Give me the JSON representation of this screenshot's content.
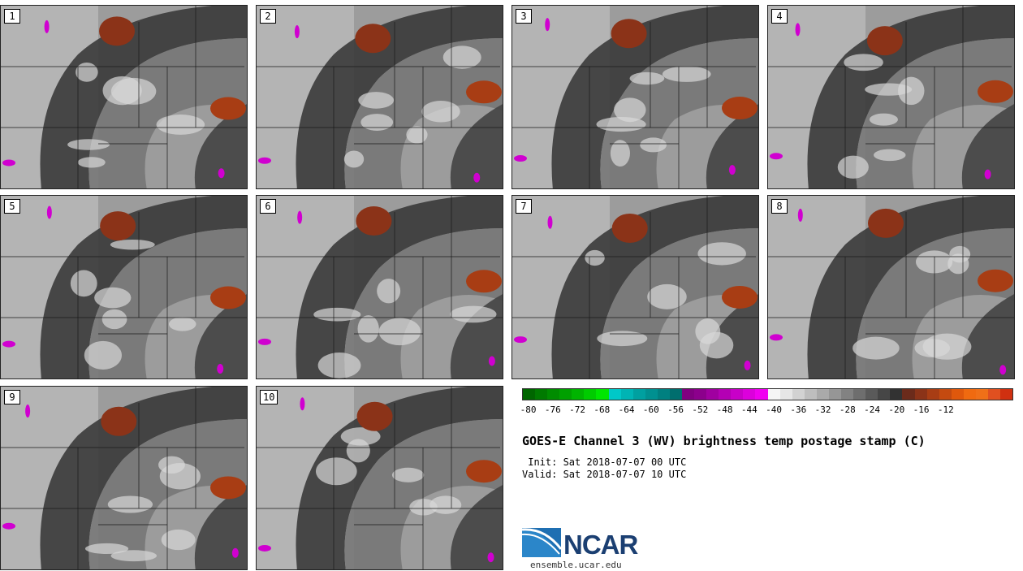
{
  "panels": [
    "1",
    "2",
    "3",
    "4",
    "5",
    "6",
    "7",
    "8",
    "9",
    "10"
  ],
  "colorbar": {
    "ticks": [
      "-80",
      "-76",
      "-72",
      "-68",
      "-64",
      "-60",
      "-56",
      "-52",
      "-48",
      "-44",
      "-40",
      "-36",
      "-32",
      "-28",
      "-24",
      "-20",
      "-16",
      "-12"
    ],
    "colors": [
      "#006600",
      "#007a00",
      "#008c00",
      "#00a000",
      "#00b400",
      "#00cc00",
      "#00e600",
      "#00c8c8",
      "#00b4b4",
      "#00a0a0",
      "#009090",
      "#008080",
      "#006e6e",
      "#800080",
      "#8c008c",
      "#a000a0",
      "#b400b4",
      "#c800c8",
      "#dc00dc",
      "#f000f0",
      "#f5f5f5",
      "#e6e6e6",
      "#d2d2d2",
      "#bebebe",
      "#aaaaaa",
      "#969696",
      "#828282",
      "#6e6e6e",
      "#5a5a5a",
      "#464646",
      "#323232",
      "#6b2b1b",
      "#8b3318",
      "#a83d14",
      "#c44a10",
      "#e0580c",
      "#f06a10",
      "#f07018",
      "#e05020",
      "#d03010"
    ]
  },
  "title": "GOES-E Channel 3 (WV) brightness temp postage stamp (C)",
  "init": " Init: Sat 2018-07-07 00 UTC",
  "valid": "Valid: Sat 2018-07-07 10 UTC",
  "logo": {
    "text": "NCAR",
    "url": "ensemble.ucar.edu"
  }
}
